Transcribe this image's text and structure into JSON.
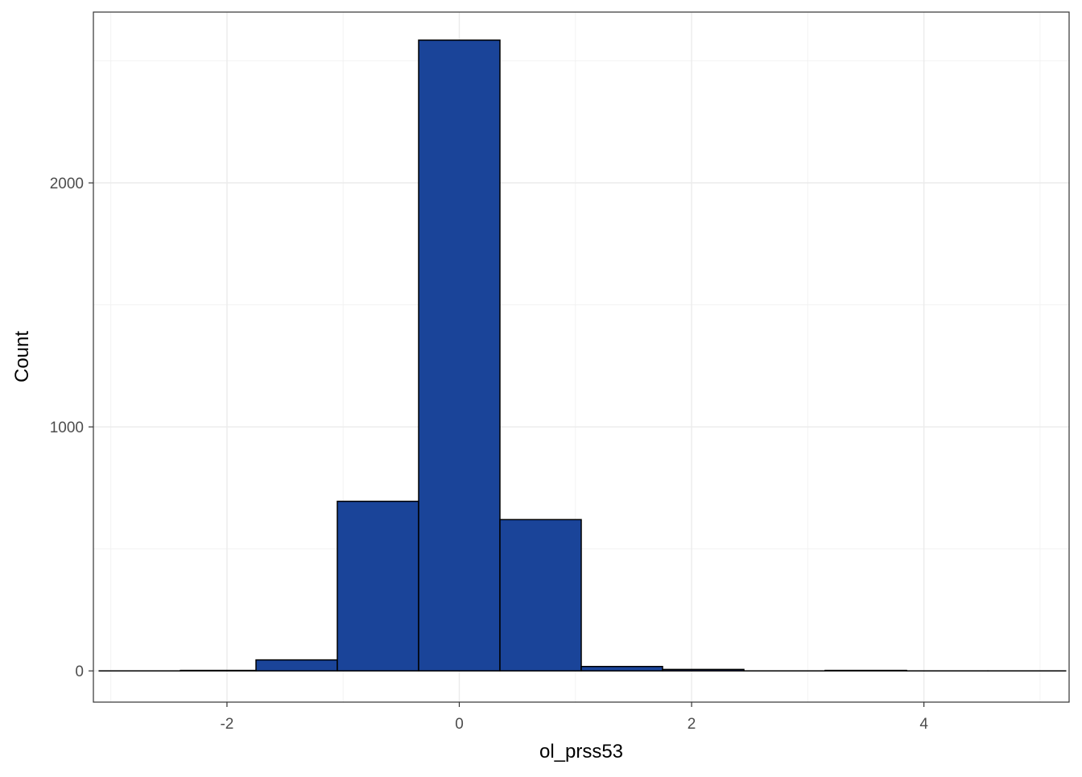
{
  "chart_data": {
    "type": "bar",
    "subtype": "histogram",
    "xlabel": "ol_prss53",
    "ylabel": "Count",
    "xlim": [
      -3.15,
      5.25
    ],
    "ylim": [
      -128,
      2700
    ],
    "x_ticks": [
      -2,
      0,
      2,
      4
    ],
    "y_ticks": [
      0,
      1000,
      2000
    ],
    "grid": true,
    "fill_color": "#1a4499",
    "edge_color": "#000000",
    "bins": [
      {
        "x0": -3.1,
        "x1": -2.4,
        "count": 0
      },
      {
        "x0": -2.4,
        "x1": -1.75,
        "count": 2
      },
      {
        "x0": -1.75,
        "x1": -1.05,
        "count": 45
      },
      {
        "x0": -1.05,
        "x1": -0.35,
        "count": 695
      },
      {
        "x0": -0.35,
        "x1": 0.35,
        "count": 2585
      },
      {
        "x0": 0.35,
        "x1": 1.05,
        "count": 620
      },
      {
        "x0": 1.05,
        "x1": 1.75,
        "count": 18
      },
      {
        "x0": 1.75,
        "x1": 2.45,
        "count": 6
      },
      {
        "x0": 2.45,
        "x1": 3.15,
        "count": 0
      },
      {
        "x0": 3.15,
        "x1": 3.85,
        "count": 2
      },
      {
        "x0": 3.85,
        "x1": 4.55,
        "count": 0
      },
      {
        "x0": 4.55,
        "x1": 5.22,
        "count": 0
      }
    ]
  }
}
